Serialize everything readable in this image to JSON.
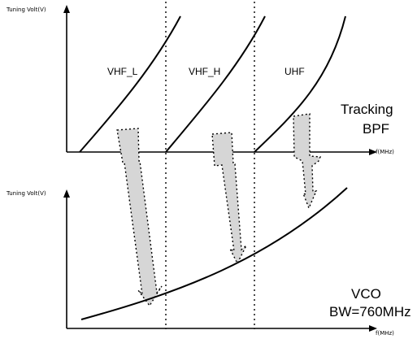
{
  "top_panel": {
    "y_axis_label": "Tuning Volt(V)",
    "x_axis_label": "f(MHz)",
    "band_labels": [
      "VHF_L",
      "VHF_H",
      "UHF"
    ],
    "title_line1": "Tracking",
    "title_line2": "BPF"
  },
  "bottom_panel": {
    "y_axis_label": "Tuning Volt(V)",
    "x_axis_label": "f(MHz)",
    "title_line1": "VCO",
    "title_line2": "BW=760MHz"
  }
}
